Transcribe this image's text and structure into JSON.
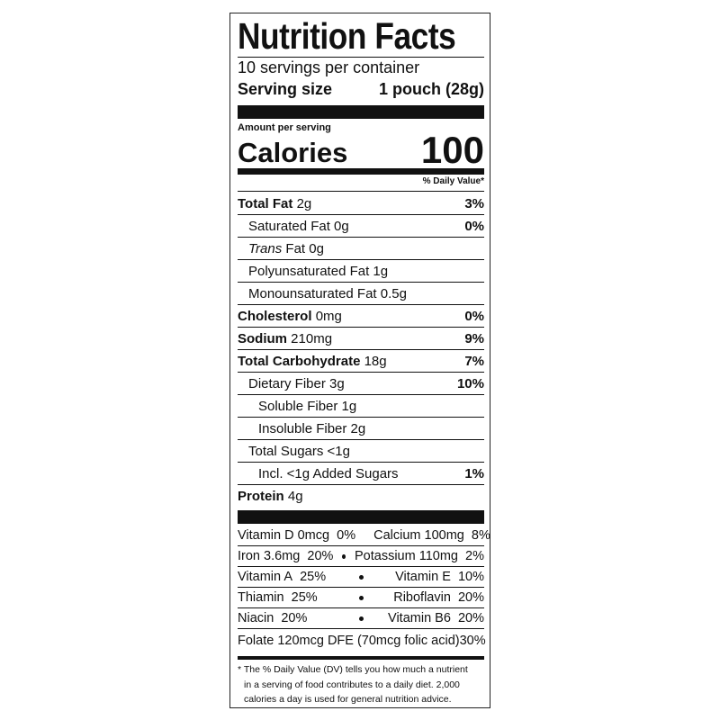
{
  "title": "Nutrition Facts",
  "servings": "10 servings per container",
  "serving_size": {
    "label": "Serving size",
    "value": "1 pouch (28g)"
  },
  "amount_per_serving": "Amount per serving",
  "calories": {
    "label": "Calories",
    "value": 100
  },
  "dv_header": "% Daily Value*",
  "nutrients": [
    {
      "name": "Total Fat",
      "amount": "2g",
      "dv": "3%"
    },
    {
      "name": "Saturated Fat 0g",
      "dv": "0%"
    },
    {
      "italic": "Trans",
      "name": "Fat 0g"
    },
    {
      "name": "Polyunsaturated Fat 1g"
    },
    {
      "name": "Monounsaturated Fat 0.5g"
    },
    {
      "name": "Cholesterol",
      "amount": "0mg",
      "dv": "0%"
    },
    {
      "name": "Sodium",
      "amount": "210mg",
      "dv": "9%"
    },
    {
      "name": "Total Carbohydrate",
      "amount": "18g",
      "dv": "7%"
    },
    {
      "name": "Dietary Fiber 3g",
      "dv": "10%"
    },
    {
      "name": "Soluble Fiber 1g"
    },
    {
      "name": "Insoluble Fiber 2g"
    },
    {
      "name": "Total Sugars <1g"
    },
    {
      "name": "Incl. <1g Added Sugars",
      "dv": "1%"
    },
    {
      "name": "Protein",
      "amount": "4g"
    }
  ],
  "vitamins": [
    [
      {
        "name": "Vitamin D 0mcg",
        "dv": "0%"
      },
      {
        "name": "Calcium 100mg",
        "dv": "8%"
      }
    ],
    [
      {
        "name": "Iron 3.6mg",
        "dv": "20%"
      },
      {
        "name": "Potassium 110mg",
        "dv": "2%"
      }
    ],
    [
      {
        "name": "Vitamin A",
        "dv": "25%"
      },
      {
        "name": "Vitamin E",
        "dv": "10%"
      }
    ],
    [
      {
        "name": "Thiamin",
        "dv": "25%"
      },
      {
        "name": "Riboflavin",
        "dv": "20%"
      }
    ],
    [
      {
        "name": "Niacin",
        "dv": "20%"
      },
      {
        "name": "Vitamin B6",
        "dv": "20%"
      }
    ]
  ],
  "folate": {
    "name": "Folate 120mcg DFE (70mcg folic acid)",
    "dv": "30%"
  },
  "footnote": [
    "* The % Daily Value (DV) tells you how much a nutrient",
    "in a serving of food contributes to a daily diet. 2,000",
    "calories a day is used for general nutrition advice."
  ]
}
